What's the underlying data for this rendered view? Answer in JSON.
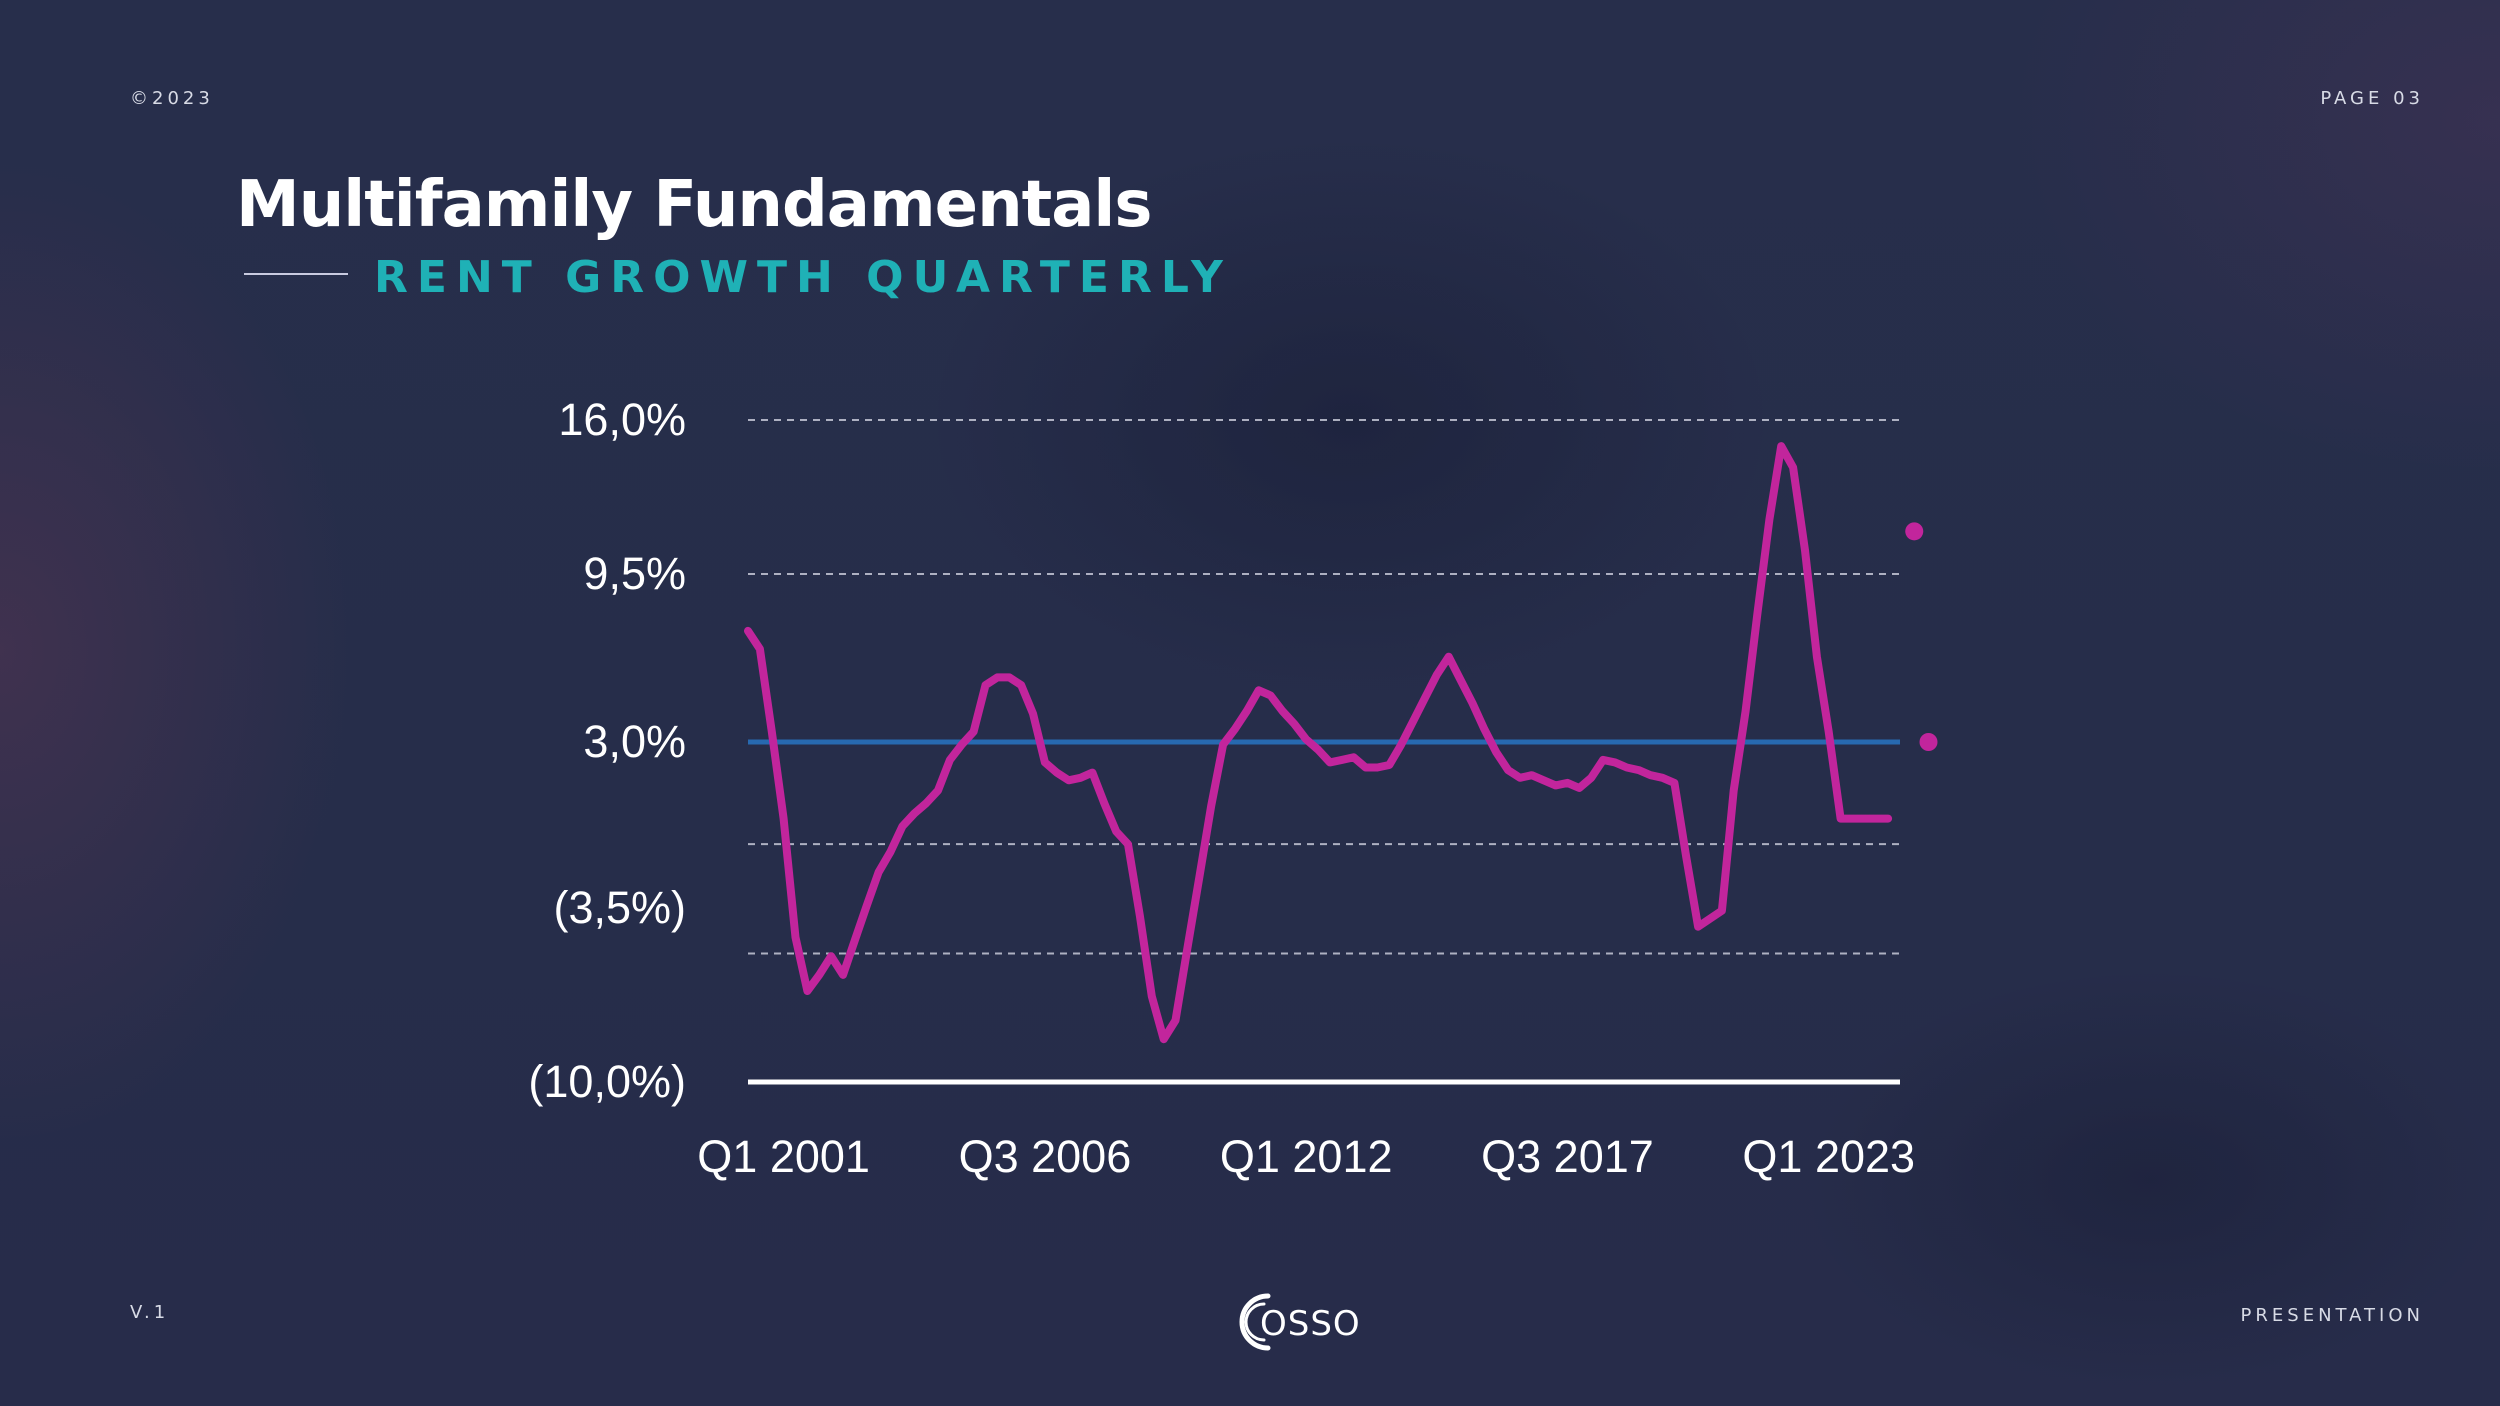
{
  "header": {
    "copyright": "©2023",
    "page": "PAGE 03"
  },
  "title": "Multifamily Fundamentals",
  "subtitle": "RENT GROWTH QUARTERLY",
  "footer": {
    "version": "V.1",
    "label": "PRESENTATION",
    "logo_text": "OSSO"
  },
  "colors": {
    "background": "#262d4a",
    "accent_teal": "#1fb1b6",
    "series": "#c2259c",
    "reference_line": "#2769b0",
    "axis": "#ffffff"
  },
  "chart_data": {
    "type": "line",
    "title": "Rent Growth Quarterly",
    "xlabel": "",
    "ylabel": "",
    "y_ticks": [
      {
        "value": 16.0,
        "label": "16,0%"
      },
      {
        "value": 9.5,
        "label": "9,5%"
      },
      {
        "value": 3.0,
        "label": "3,0%"
      },
      {
        "value": -3.5,
        "label": "(3,5%)"
      },
      {
        "value": -10.0,
        "label": "(10,0%)"
      }
    ],
    "ylim": [
      -10.0,
      16.0
    ],
    "xlim": [
      2000.25,
      2024.5
    ],
    "x_ticks": [
      {
        "value": 2001.0,
        "label": "Q1 2001"
      },
      {
        "value": 2006.5,
        "label": "Q3 2006"
      },
      {
        "value": 2012.0,
        "label": "Q1 2012"
      },
      {
        "value": 2017.5,
        "label": "Q3 2017"
      },
      {
        "value": 2023.0,
        "label": "Q1 2023"
      }
    ],
    "gridlines": [
      16.0,
      9.5,
      -1.0,
      -5.2
    ],
    "reference_line": {
      "value": 3.0,
      "label": "3,0%"
    },
    "series": [
      {
        "name": "Rent Growth",
        "x": [
          2000.25,
          2000.5,
          2000.75,
          2001.0,
          2001.25,
          2001.5,
          2001.75,
          2002.0,
          2002.25,
          2002.5,
          2002.75,
          2003.0,
          2003.25,
          2003.5,
          2003.75,
          2004.0,
          2004.25,
          2004.5,
          2004.75,
          2005.0,
          2005.25,
          2005.5,
          2005.75,
          2006.0,
          2006.25,
          2006.5,
          2006.75,
          2007.0,
          2007.25,
          2007.5,
          2007.75,
          2008.0,
          2008.25,
          2008.5,
          2008.75,
          2009.0,
          2009.25,
          2009.5,
          2009.75,
          2010.0,
          2010.25,
          2010.5,
          2010.75,
          2011.0,
          2011.25,
          2011.5,
          2011.75,
          2012.0,
          2012.25,
          2012.5,
          2012.75,
          2013.0,
          2013.25,
          2013.5,
          2013.75,
          2014.0,
          2014.25,
          2014.5,
          2014.75,
          2015.0,
          2015.25,
          2015.5,
          2015.75,
          2016.0,
          2016.25,
          2016.5,
          2016.75,
          2017.0,
          2017.25,
          2017.5,
          2017.75,
          2018.0,
          2018.25,
          2018.5,
          2018.75,
          2019.0,
          2019.25,
          2019.5,
          2019.75,
          2020.0,
          2020.25,
          2020.5,
          2020.75,
          2021.0,
          2021.25,
          2021.5,
          2021.75,
          2022.0,
          2022.25,
          2022.5,
          2022.75,
          2023.0,
          2023.25,
          2023.5,
          2023.75,
          2024.0,
          2024.25,
          2024.5
        ],
        "values": [
          7.3,
          6.6,
          3.4,
          0.0,
          -4.6,
          -6.6,
          -6.0,
          -5.3,
          -6.0,
          -4.7,
          -3.4,
          -2.1,
          -1.3,
          -0.3,
          0.2,
          0.6,
          1.1,
          2.3,
          2.9,
          3.4,
          5.2,
          5.5,
          5.5,
          5.2,
          4.1,
          2.2,
          1.8,
          1.5,
          1.6,
          1.8,
          0.6,
          -0.5,
          -1.0,
          -3.8,
          -6.8,
          -8.4,
          -7.7,
          -5.0,
          -2.3,
          0.5,
          2.9,
          3.5,
          4.2,
          5.0,
          4.8,
          4.2,
          3.7,
          3.1,
          2.7,
          2.2,
          2.3,
          2.4,
          2.0,
          2.0,
          2.1,
          2.9,
          3.8,
          4.7,
          5.6,
          6.3,
          5.4,
          4.5,
          3.5,
          2.6,
          1.9,
          1.6,
          1.7,
          1.5,
          1.3,
          1.4,
          1.2,
          1.6,
          2.3,
          2.2,
          2.0,
          1.9,
          1.7,
          1.6,
          1.4,
          -1.5,
          -4.2,
          -3.9,
          -3.6,
          1.1,
          4.2,
          8.0,
          11.8,
          14.9,
          14.0,
          10.5,
          6.3,
          3.4,
          0.0,
          0.0,
          0.0,
          0.0,
          0.0,
          0.0
        ],
        "end_x": 2024.25
      }
    ],
    "markers": [
      {
        "x": 2024.8,
        "y": 11.3
      },
      {
        "x": 2025.1,
        "y": 3.0
      }
    ]
  }
}
